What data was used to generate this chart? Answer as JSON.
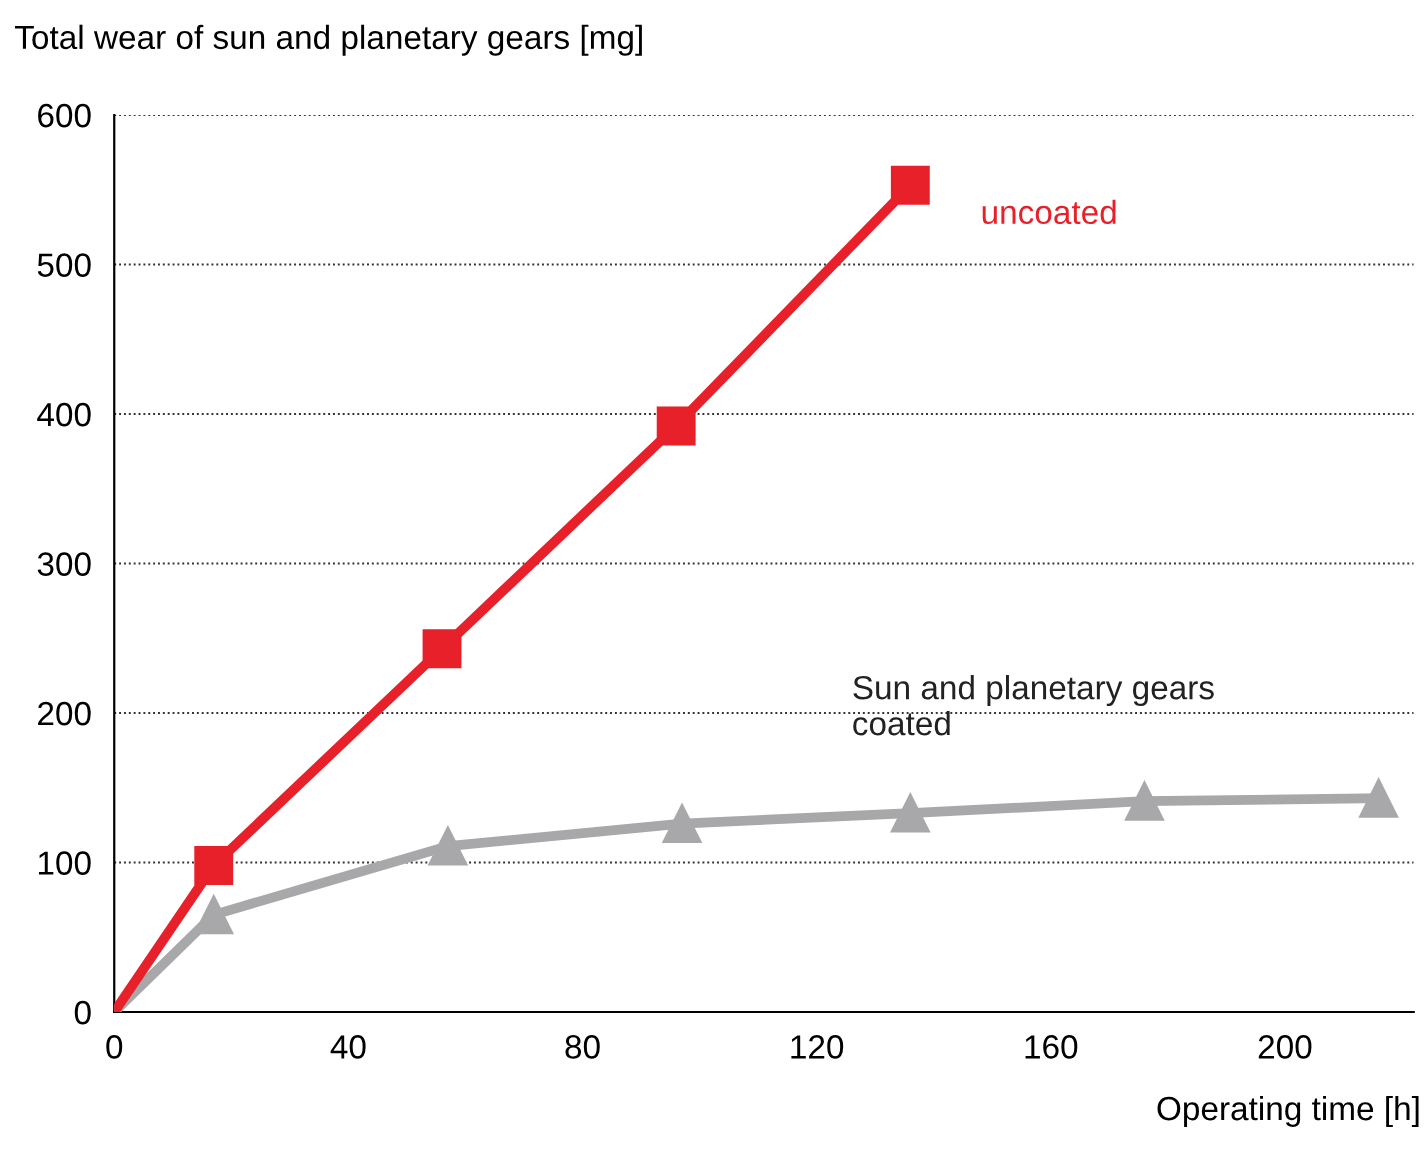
{
  "chart_data": {
    "type": "line",
    "ylabel": "Total wear of sun and planetary gears [mg]",
    "xlabel": "Operating time [h]",
    "series": [
      {
        "name": "uncoated",
        "color": "#e8202a",
        "marker": "square",
        "x": [
          0,
          17,
          56,
          96,
          136
        ],
        "values": [
          0,
          98,
          243,
          392,
          553
        ]
      },
      {
        "name": "Sun and planetary gears\ncoated",
        "color": "#a8a8aa",
        "marker": "triangle",
        "x": [
          0,
          17,
          57,
          97,
          136,
          176,
          216
        ],
        "values": [
          0,
          65,
          111,
          126,
          133,
          141,
          143
        ]
      }
    ],
    "xlim": [
      0,
      222
    ],
    "ylim": [
      0,
      600
    ],
    "xticks": [
      0,
      40,
      80,
      120,
      160,
      200
    ],
    "yticks": [
      0,
      100,
      200,
      300,
      400,
      500,
      600
    ],
    "grid": "y",
    "line_style": "solid",
    "legend": false
  }
}
